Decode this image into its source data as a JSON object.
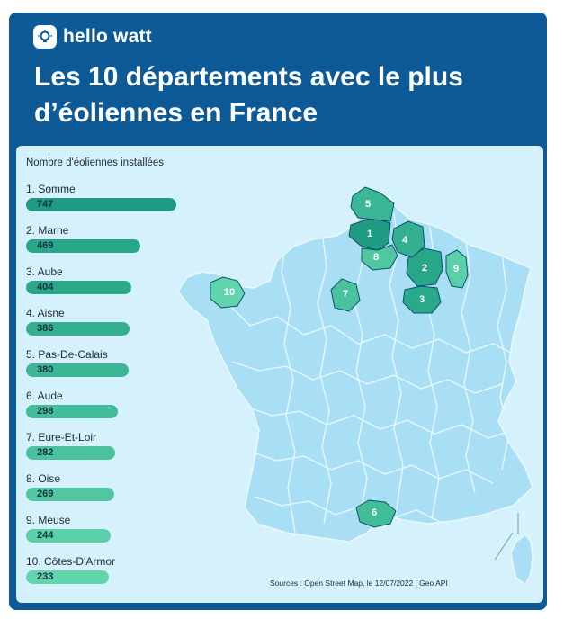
{
  "brand": {
    "name": "hello watt",
    "logo_icon": "lightbulb-icon"
  },
  "title": "Les 10 départements avec le plus d’éoliennes en France",
  "legend_title": "Nombre d'éoliennes installées",
  "sources": "Sources : Open Street Map, le 12/07/2022 | Geo API",
  "colors": {
    "header_bg": "#0d5a96",
    "panel_bg": "#d5f1fb",
    "map_fill": "#a9dff5",
    "map_stroke": "#e9f8fe",
    "rank_colors": [
      "#1e9b80",
      "#27a688",
      "#2aa98a",
      "#33b090",
      "#3bb795",
      "#42bd99",
      "#49c29d",
      "#50c7a1",
      "#5acfa8",
      "#62d5ad"
    ]
  },
  "chart_data": {
    "type": "bar",
    "title": "Les 10 départements avec le plus d’éoliennes en France",
    "ylabel": "Nombre d'éoliennes installées",
    "categories": [
      "1.  Somme",
      "2.  Marne",
      "3.  Aube",
      "4.  Aisne",
      "5.  Pas-De-Calais",
      "6.  Aude",
      "7.  Eure-Et-Loir",
      "8.  Oise",
      "9.  Meuse",
      "10.  Côtes-D'Armor"
    ],
    "values": [
      747,
      469,
      404,
      386,
      380,
      298,
      282,
      269,
      244,
      233
    ],
    "map_markers": [
      "1",
      "2",
      "3",
      "4",
      "5",
      "6",
      "7",
      "8",
      "9",
      "10"
    ]
  }
}
